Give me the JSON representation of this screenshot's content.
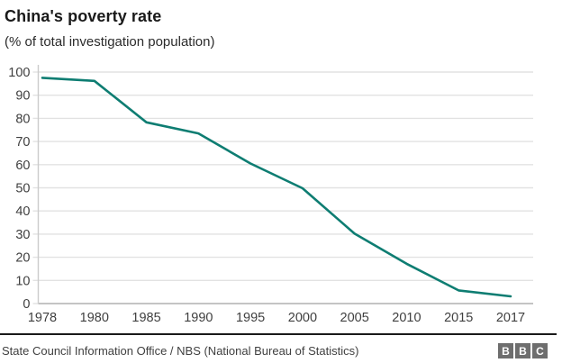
{
  "header": {
    "title": "China's poverty rate",
    "subtitle": "(% of total investigation population)"
  },
  "chart_data": {
    "type": "line",
    "title": "China's poverty rate",
    "subtitle": "(% of total investigation population)",
    "categories": [
      "1978",
      "1980",
      "1985",
      "1990",
      "1995",
      "2000",
      "2005",
      "2010",
      "2015",
      "2017"
    ],
    "values": [
      97.5,
      96.2,
      78.3,
      73.5,
      60.5,
      49.8,
      30.2,
      17.2,
      5.7,
      3.1
    ],
    "xlabel": "",
    "ylabel": "",
    "ylim": [
      0,
      100
    ],
    "ytick_step": 10,
    "grid": "horizontal",
    "legend": "none",
    "line_color": "#0e7d72"
  },
  "colors": {
    "line": "#0e7d72",
    "gridline": "#e2e2e2",
    "axis": "#cccccc",
    "baseline": "#b0b0b0",
    "axis_text": "#404040",
    "divider": "#1a1a1a",
    "logo_bg": "#6e6e6e"
  },
  "footer": {
    "source": "State Council Information Office / NBS (National Bureau of Statistics)",
    "logo_letters": [
      "B",
      "B",
      "C"
    ]
  }
}
